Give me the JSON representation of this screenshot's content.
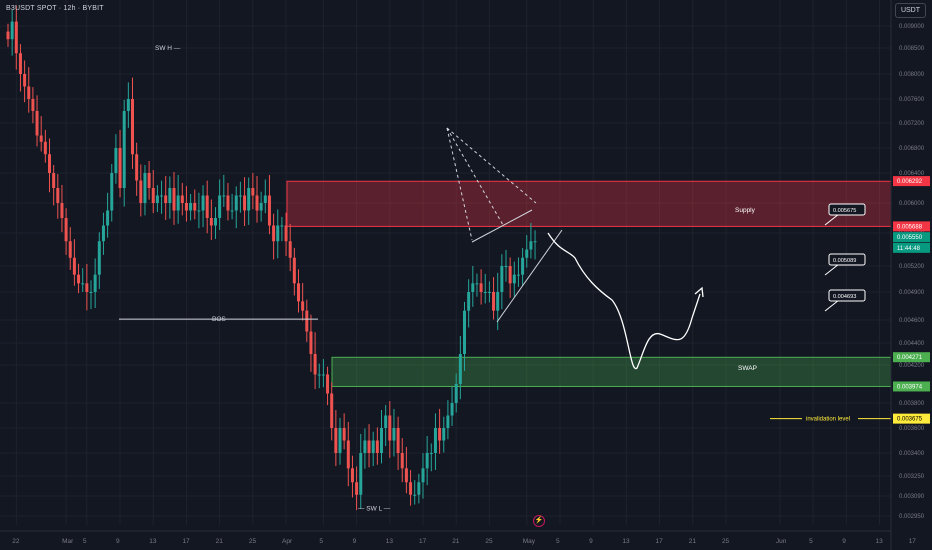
{
  "header": {
    "symbol": "B3USDT SPOT · 12h · BYBIT",
    "currency_button": "USDT"
  },
  "chart_data": {
    "type": "candlestick",
    "price_axis": {
      "min": 0.0029,
      "max": 0.0092,
      "ticks": [
        "0.009000",
        "0.008500",
        "0.008000",
        "0.007600",
        "0.007200",
        "0.006800",
        "0.006400",
        "0.006000",
        "0.005600",
        "0.005200",
        "0.004900",
        "0.004600",
        "0.004400",
        "0.004200",
        "0.003800",
        "0.003600",
        "0.003400",
        "0.003250",
        "0.003090",
        "0.002950"
      ]
    },
    "x_axis": {
      "ticks": [
        {
          "label": "22",
          "i": 2
        },
        {
          "label": "Mar",
          "i": 14
        },
        {
          "label": "5",
          "i": 19
        },
        {
          "label": "9",
          "i": 27
        },
        {
          "label": "13",
          "i": 35
        },
        {
          "label": "17",
          "i": 43
        },
        {
          "label": "21",
          "i": 51
        },
        {
          "label": "25",
          "i": 59
        },
        {
          "label": "Apr",
          "i": 67
        },
        {
          "label": "5",
          "i": 76
        },
        {
          "label": "9",
          "i": 84
        },
        {
          "label": "13",
          "i": 92
        },
        {
          "label": "17",
          "i": 100
        },
        {
          "label": "21",
          "i": 108
        },
        {
          "label": "25",
          "i": 116
        },
        {
          "label": "May",
          "i": 125
        },
        {
          "label": "5",
          "i": 133
        },
        {
          "label": "9",
          "i": 141
        },
        {
          "label": "13",
          "i": 149
        },
        {
          "label": "17",
          "i": 157
        },
        {
          "label": "21",
          "i": 165
        },
        {
          "label": "25",
          "i": 173
        },
        {
          "label": "Jun",
          "i": 186
        },
        {
          "label": "5",
          "i": 194
        },
        {
          "label": "9",
          "i": 202
        },
        {
          "label": "13",
          "i": 210
        },
        {
          "label": "17",
          "i": 218
        }
      ]
    },
    "candles_close": [
      0.0087,
      0.0091,
      0.0084,
      0.008,
      0.0078,
      0.0076,
      0.0074,
      0.007,
      0.0069,
      0.0067,
      0.0064,
      0.0062,
      0.006,
      0.0058,
      0.0055,
      0.0053,
      0.0051,
      0.005,
      0.005,
      0.0049,
      0.0049,
      0.0051,
      0.0055,
      0.0057,
      0.0059,
      0.0064,
      0.0068,
      0.0062,
      0.0074,
      0.0076,
      0.0067,
      0.0063,
      0.006,
      0.0064,
      0.0062,
      0.006,
      0.0061,
      0.0061,
      0.006,
      0.0062,
      0.0059,
      0.0061,
      0.006,
      0.0059,
      0.006,
      0.0059,
      0.0059,
      0.0061,
      0.0058,
      0.0057,
      0.0058,
      0.0061,
      0.0061,
      0.0059,
      0.0059,
      0.0061,
      0.0061,
      0.0059,
      0.0062,
      0.0061,
      0.0059,
      0.006,
      0.0061,
      0.0057,
      0.0055,
      0.0057,
      0.0057,
      0.0055,
      0.0053,
      0.005,
      0.0048,
      0.0047,
      0.0045,
      0.0043,
      0.0041,
      0.0041,
      0.0041,
      0.0039,
      0.0036,
      0.0034,
      0.0036,
      0.0035,
      0.0033,
      0.0032,
      0.0031,
      0.0034,
      0.0035,
      0.0034,
      0.0035,
      0.0034,
      0.0036,
      0.0037,
      0.0035,
      0.0036,
      0.0034,
      0.0033,
      0.0032,
      0.0031,
      0.0031,
      0.0032,
      0.0033,
      0.0034,
      0.0034,
      0.0036,
      0.0035,
      0.0036,
      0.0037,
      0.0038,
      0.004,
      0.0043,
      0.0047,
      0.0049,
      0.005,
      0.005,
      0.0049,
      0.0049,
      0.0049,
      0.0047,
      0.0049,
      0.0052,
      0.0052,
      0.005,
      0.0051,
      0.0051,
      0.0053,
      0.0054,
      0.0055,
      0.0055
    ],
    "annotations": {
      "supply": {
        "label": "Supply",
        "top": 0.00629,
        "bottom": 0.005688
      },
      "swap": {
        "label": "SWAP",
        "top": 0.00427,
        "bottom": 0.003974
      },
      "invalidation": {
        "label": "invalidation level",
        "price": 0.003675
      },
      "bos": {
        "label": "BOS",
        "price": 0.00461
      },
      "swing_high": {
        "label": "SW H",
        "price": 0.00852
      },
      "swing_low": {
        "label": "SW L",
        "price": 0.00301
      },
      "targets": [
        "0.005675",
        "0.005089",
        "0.004693"
      ]
    },
    "price_tags": [
      {
        "text": "0.006292",
        "price": 0.006292,
        "color": "#f23645"
      },
      {
        "text": "0.005688",
        "price": 0.005688,
        "color": "#f23645"
      },
      {
        "text": "0.005550",
        "price": 0.00555,
        "color": "#089981"
      },
      {
        "text": "11:44:48",
        "price": 0.00542,
        "color": "#089981"
      },
      {
        "text": "0.004271",
        "price": 0.004271,
        "color": "#4caf50"
      },
      {
        "text": "0.003974",
        "price": 0.003974,
        "color": "#4caf50"
      },
      {
        "text": "0.003675",
        "price": 0.003675,
        "color": "#ffeb3b"
      }
    ],
    "colors": {
      "up": "#26a69a",
      "down": "#ef5350",
      "bg": "#131722"
    }
  }
}
